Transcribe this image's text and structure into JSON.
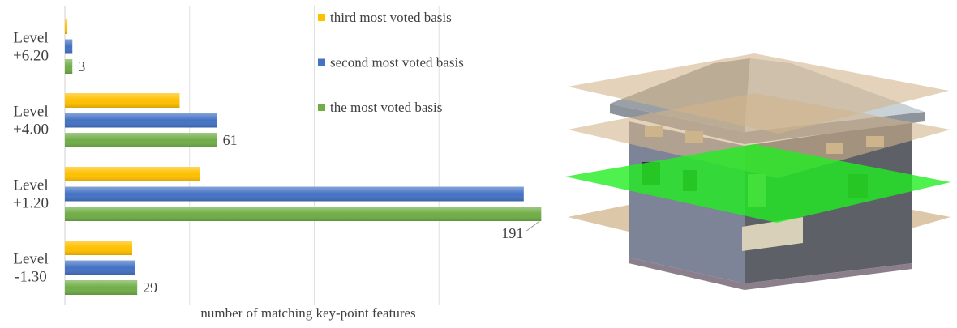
{
  "chart_data": {
    "type": "bar",
    "orientation": "horizontal",
    "x_label": "number of matching key-point features",
    "categories": [
      "Level +6.20",
      "Level +4.00",
      "Level +1.20",
      "Level -1.30"
    ],
    "series": [
      {
        "name": "third most voted basis",
        "color": "#ffc000",
        "values": [
          1,
          46,
          54,
          27
        ]
      },
      {
        "name": "second most voted basis",
        "color": "#4472c4",
        "values": [
          3,
          61,
          184,
          28
        ]
      },
      {
        "name": "the most voted basis",
        "color": "#70ad47",
        "values": [
          3,
          61,
          191,
          29
        ],
        "data_labels": true
      }
    ],
    "xlim": [
      0,
      200
    ],
    "xticks": [
      0,
      50,
      100,
      150
    ],
    "grid": true
  }
}
